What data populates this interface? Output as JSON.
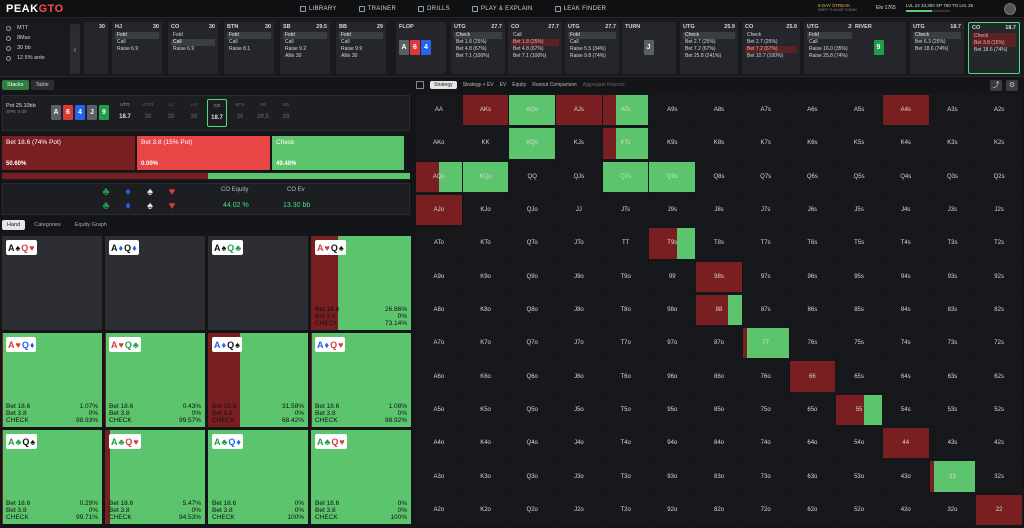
{
  "app": {
    "logo_a": "PEAK",
    "logo_b": "GTO"
  },
  "nav": [
    {
      "label": "LIBRARY",
      "icon": "library-icon"
    },
    {
      "label": "TRAINER",
      "icon": "trainer-icon"
    },
    {
      "label": "DRILLS",
      "icon": "drills-icon"
    },
    {
      "label": "PLAY & EXPLAIN",
      "icon": "play-icon"
    },
    {
      "label": "LEAK FINDER",
      "icon": "leak-icon"
    }
  ],
  "user": {
    "streak": "5-DAY STREAK",
    "streak_sub": "KEEP IT ALIVE TODAY",
    "elo": "Elo 1765",
    "level": "LVL 24",
    "xp": "33,300 XP",
    "xp_sub": "750 TO LVL 25"
  },
  "settings": [
    "MTT",
    "8Max",
    "30 bb",
    "12.5% ante"
  ],
  "positions": [
    {
      "pos": "",
      "stack": "30",
      "rows": []
    },
    {
      "pos": "HJ",
      "stack": "30",
      "rows": [
        {
          "t": "Fold",
          "k": "sel"
        },
        {
          "t": "Call",
          "k": ""
        },
        {
          "t": "Raise 6.9",
          "k": ""
        }
      ]
    },
    {
      "pos": "CO",
      "stack": "30",
      "rows": [
        {
          "t": "Fold",
          "k": ""
        },
        {
          "t": "Call",
          "k": "sel"
        },
        {
          "t": "Raise 6.9",
          "k": ""
        }
      ]
    },
    {
      "pos": "BTN",
      "stack": "30",
      "rows": [
        {
          "t": "Fold",
          "k": "sel"
        },
        {
          "t": "Call",
          "k": ""
        },
        {
          "t": "Raise 8.1",
          "k": ""
        }
      ]
    },
    {
      "pos": "SB",
      "stack": "29.5",
      "rows": [
        {
          "t": "Fold",
          "k": "sel"
        },
        {
          "t": "Call",
          "k": ""
        },
        {
          "t": "Raise 9.2",
          "k": ""
        },
        {
          "t": "Allin 30",
          "k": ""
        }
      ]
    },
    {
      "pos": "BB",
      "stack": "29",
      "rows": [
        {
          "t": "Fold",
          "k": "sel"
        },
        {
          "t": "Call",
          "k": ""
        },
        {
          "t": "Raise 9.9",
          "k": ""
        },
        {
          "t": "Allin 30",
          "k": ""
        }
      ]
    }
  ],
  "flop": {
    "label": "FLOP",
    "cards": [
      {
        "r": "A",
        "s": "c-s"
      },
      {
        "r": "6",
        "s": "c-h"
      },
      {
        "r": "4",
        "s": "c-d"
      }
    ]
  },
  "postflop": [
    {
      "pos": "UTG",
      "stack": "27.7",
      "rows": [
        {
          "t": "Check",
          "k": "sel"
        },
        {
          "t": "Bet 1.8 (25%)",
          "k": ""
        },
        {
          "t": "Bet 4.8 (67%)",
          "k": ""
        },
        {
          "t": "Bet 7.1 (100%)",
          "k": ""
        }
      ]
    },
    {
      "pos": "CO",
      "stack": "27.7",
      "rows": [
        {
          "t": "Call",
          "k": ""
        },
        {
          "t": "Bet 1.8 (25%)",
          "k": "hl"
        },
        {
          "t": "Bet 4.8 (67%)",
          "k": ""
        },
        {
          "t": "Bet 7.1 (100%)",
          "k": ""
        }
      ]
    },
    {
      "pos": "UTG",
      "stack": "27.7",
      "rows": [
        {
          "t": "Fold",
          "k": "sel"
        },
        {
          "t": "Call",
          "k": ""
        },
        {
          "t": "Raise 5.5 (34%)",
          "k": ""
        },
        {
          "t": "Raise 9.8 (74%)",
          "k": ""
        }
      ]
    }
  ],
  "turn": {
    "label": "TURN",
    "card": {
      "r": "J",
      "s": "c-s"
    }
  },
  "turnacts": [
    {
      "pos": "UTG",
      "stack": "25.9",
      "rows": [
        {
          "t": "Check",
          "k": "sel"
        },
        {
          "t": "Bet 2.7 (25%)",
          "k": ""
        },
        {
          "t": "Bet 7.2 (67%)",
          "k": ""
        },
        {
          "t": "Bet 25.8 (241%)",
          "k": ""
        }
      ]
    },
    {
      "pos": "CO",
      "stack": "25.9",
      "rows": [
        {
          "t": "Check",
          "k": ""
        },
        {
          "t": "Bet 2.7 (25%)",
          "k": ""
        },
        {
          "t": "Bet 7.2 (67%)",
          "k": "hl"
        },
        {
          "t": "Bet 10.7 (100%)",
          "k": ""
        }
      ]
    },
    {
      "pos": "UTG",
      "stack": "25.9",
      "rows": [
        {
          "t": "Fold",
          "k": "sel"
        },
        {
          "t": "Call",
          "k": ""
        },
        {
          "t": "Raise 16.0 (35%)",
          "k": ""
        },
        {
          "t": "Raise 25.8 (74%)",
          "k": ""
        }
      ]
    }
  ],
  "river": {
    "label": "RIVER",
    "card": {
      "r": "9",
      "s": "c-c"
    }
  },
  "riveracts": [
    {
      "pos": "UTG",
      "stack": "18.7",
      "rows": [
        {
          "t": "Check",
          "k": "sel"
        },
        {
          "t": "Bet 6.3 (25%)",
          "k": ""
        },
        {
          "t": "Bet 18.6 (74%)",
          "k": ""
        }
      ]
    },
    {
      "pos": "CO",
      "stack": "18.7",
      "rows": [
        {
          "t": "Check",
          "k": "hl"
        },
        {
          "t": "Bet 3.8 (15%)",
          "k": "hl"
        },
        {
          "t": "Bet 18.6 (74%)",
          "k": ""
        }
      ]
    }
  ],
  "left_tabs": [
    "Stacks",
    "Table"
  ],
  "pot": {
    "label": "Pot",
    "value": "25.10bb",
    "spr": "SPR: 0.00"
  },
  "board": [
    {
      "r": "A",
      "s": "c-s"
    },
    {
      "r": "6",
      "s": "c-h"
    },
    {
      "r": "4",
      "s": "c-d"
    },
    {
      "r": "J",
      "s": "c-s"
    },
    {
      "r": "9",
      "s": "c-c"
    }
  ],
  "seats": [
    {
      "p": "UTG",
      "v": "18.7",
      "k": "live"
    },
    {
      "p": "UTG1",
      "v": "30",
      "k": ""
    },
    {
      "p": "LJ",
      "v": "30",
      "k": ""
    },
    {
      "p": "HJ",
      "v": "30",
      "k": ""
    },
    {
      "p": "CO",
      "v": "18.7",
      "k": "live cur"
    },
    {
      "p": "BTN",
      "v": "30",
      "k": ""
    },
    {
      "p": "SB",
      "v": "29.5",
      "k": ""
    },
    {
      "p": "BB",
      "v": "29",
      "k": ""
    }
  ],
  "strategy": [
    {
      "label": "Bet 18.6 (74% Pot)",
      "pct": "50.60%",
      "color": "#7a1f21"
    },
    {
      "label": "Bet 3.8 (15% Pot)",
      "pct": "0.00%",
      "color": "#e84545"
    },
    {
      "label": "Check",
      "pct": "49.40%",
      "color": "#5cc46d"
    }
  ],
  "freq": [
    50.6,
    0,
    49.4
  ],
  "equity": {
    "eq_label": "CO Equity",
    "eq_val": "44.02 %",
    "ev_label": "CO Ev",
    "ev_val": "13.30 bb"
  },
  "hand_tabs": [
    "Hand",
    "Categories",
    "Equity Graph"
  ],
  "hands": [
    {
      "c": [
        [
          "A",
          "#111"
        ],
        [
          "♠",
          "#111"
        ],
        [
          "Q",
          "#d93a3a"
        ],
        [
          "♥",
          "#d93a3a"
        ]
      ],
      "bet": null,
      "fill": 0
    },
    {
      "c": [
        [
          "A",
          "#111"
        ],
        [
          "♦",
          "#2563eb"
        ],
        [
          "Q",
          "#111"
        ],
        [
          "♦",
          "#2563eb"
        ]
      ],
      "bet": null,
      "fill": 0
    },
    {
      "c": [
        [
          "A",
          "#111"
        ],
        [
          "♠",
          "#111"
        ],
        [
          "Q",
          "#1f9d48"
        ],
        [
          "♣",
          "#1f9d48"
        ]
      ],
      "bet": null,
      "fill": 0
    },
    {
      "c": [
        [
          "A",
          "#d93a3a"
        ],
        [
          "♥",
          "#d93a3a"
        ],
        [
          "Q",
          "#111"
        ],
        [
          "♠",
          "#111"
        ]
      ],
      "bet": "26.86%",
      "b38": "0%",
      "chk": "73.14%",
      "fill": 26.86
    },
    {
      "c": [
        [
          "A",
          "#d93a3a"
        ],
        [
          "♥",
          "#d93a3a"
        ],
        [
          "Q",
          "#2563eb"
        ],
        [
          "♦",
          "#2563eb"
        ]
      ],
      "bet": "1.07%",
      "b38": "0%",
      "chk": "98.93%",
      "fill": 1.07
    },
    {
      "c": [
        [
          "A",
          "#d93a3a"
        ],
        [
          "♥",
          "#d93a3a"
        ],
        [
          "Q",
          "#1f9d48"
        ],
        [
          "♣",
          "#1f9d48"
        ]
      ],
      "bet": "0.43%",
      "b38": "0%",
      "chk": "99.57%",
      "fill": 0.43
    },
    {
      "c": [
        [
          "A",
          "#2563eb"
        ],
        [
          "♦",
          "#2563eb"
        ],
        [
          "Q",
          "#111"
        ],
        [
          "♠",
          "#111"
        ]
      ],
      "bet": "31.58%",
      "b38": "0%",
      "chk": "68.42%",
      "fill": 31.58
    },
    {
      "c": [
        [
          "A",
          "#2563eb"
        ],
        [
          "♦",
          "#2563eb"
        ],
        [
          "Q",
          "#d93a3a"
        ],
        [
          "♥",
          "#d93a3a"
        ]
      ],
      "bet": "1.08%",
      "b38": "0%",
      "chk": "98.92%",
      "fill": 1.08
    },
    {
      "c": [
        [
          "A",
          "#1f9d48"
        ],
        [
          "♣",
          "#1f9d48"
        ],
        [
          "Q",
          "#111"
        ],
        [
          "♠",
          "#111"
        ]
      ],
      "bet": "0.29%",
      "b38": "0%",
      "chk": "99.71%",
      "fill": 0.29
    },
    {
      "c": [
        [
          "A",
          "#1f9d48"
        ],
        [
          "♣",
          "#1f9d48"
        ],
        [
          "Q",
          "#d93a3a"
        ],
        [
          "♥",
          "#d93a3a"
        ]
      ],
      "bet": "5.47%",
      "b38": "0%",
      "chk": "94.53%",
      "fill": 5.47
    },
    {
      "c": [
        [
          "A",
          "#1f9d48"
        ],
        [
          "♣",
          "#1f9d48"
        ],
        [
          "Q",
          "#2563eb"
        ],
        [
          "♦",
          "#2563eb"
        ]
      ],
      "bet": "0%",
      "b38": "0%",
      "chk": "100%",
      "fill": 0
    },
    {
      "c": [
        [
          "A",
          "#1f9d48"
        ],
        [
          "♣",
          "#1f9d48"
        ],
        [
          "Q",
          "#d93a3a"
        ],
        [
          "♥",
          "#d93a3a"
        ]
      ],
      "bet": "0%",
      "b38": "0%",
      "chk": "100%",
      "fill": 0
    }
  ],
  "labels": {
    "bet_big": "Bet 18.6",
    "bet_small": "Bet 3.8",
    "check": "CHECK"
  },
  "right_tabs": [
    "Strategy",
    "Strategy + EV",
    "EV",
    "Equity",
    "Runout Comparison",
    "Aggregate Reports"
  ],
  "ranks": [
    "A",
    "K",
    "Q",
    "J",
    "T",
    "9",
    "8",
    "7",
    "6",
    "5",
    "4",
    "3",
    "2"
  ],
  "cells": {
    "AKs": [
      1,
      0
    ],
    "AQs": [
      0,
      1
    ],
    "AJs": [
      1,
      0
    ],
    "ATs": [
      0.3,
      0.7
    ],
    "KQs": [
      0,
      1
    ],
    "KTs": [
      0.3,
      0.7
    ],
    "AQo": [
      0.5,
      0.5
    ],
    "KQo": [
      0,
      1
    ],
    "QTs": [
      0,
      1
    ],
    "Q9s": [
      0,
      1
    ],
    "AJo": [
      1,
      0
    ],
    "T9s": [
      0.6,
      0.4
    ],
    "98s": [
      1,
      0
    ],
    "88": [
      0.7,
      0.3
    ],
    "77": [
      0.1,
      0.9
    ],
    "66": [
      1,
      0
    ],
    "55": [
      0.6,
      0.4
    ],
    "A4s": [
      1,
      0
    ],
    "44": [
      1,
      0
    ],
    "33": [
      0.1,
      0.9
    ],
    "22": [
      1,
      0
    ]
  },
  "colors": {
    "bet": "#7a1f21",
    "check": "#5cc46d",
    "empty": "#17181b"
  }
}
